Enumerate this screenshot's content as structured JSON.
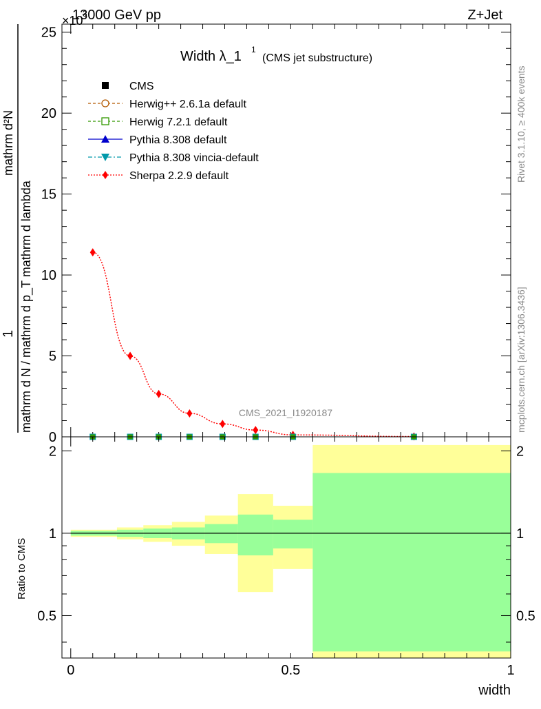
{
  "header": {
    "left": "13000 GeV pp",
    "right": "Z+Jet",
    "exponent": "×10",
    "exponent_power": "3"
  },
  "title": {
    "main": "Width λ_1",
    "sup": "1",
    "sub": "(CMS jet substructure)"
  },
  "side_labels": {
    "rivet": "Rivet 3.1.10, ≥ 400k events",
    "mcplots": "mcplots.cern.ch [arXiv:1306.3436]"
  },
  "watermark": "CMS_2021_I1920187",
  "legend": [
    {
      "label": "CMS",
      "marker": "square-filled",
      "color": "#000000",
      "line": "none"
    },
    {
      "label": "Herwig++ 2.6.1a default",
      "marker": "circle-open",
      "color": "#b35900",
      "line": "dashed"
    },
    {
      "label": "Herwig 7.2.1 default",
      "marker": "square-open",
      "color": "#339900",
      "line": "dashed"
    },
    {
      "label": "Pythia 8.308 default",
      "marker": "triangle-up",
      "color": "#0000cc",
      "line": "solid"
    },
    {
      "label": "Pythia 8.308 vincia-default",
      "marker": "triangle-down",
      "color": "#0099aa",
      "line": "dashdot"
    },
    {
      "label": "Sherpa 2.2.9 default",
      "marker": "diamond",
      "color": "#ff0000",
      "line": "dotted"
    }
  ],
  "chart_data": [
    {
      "type": "line",
      "ylabel_top": "1",
      "ylabel_main": "mathrm d N / mathrm d p_T mathrm d lambda",
      "ylabel_numerator": "mathrm d²N",
      "ylabel_denominator": "mathrm d p_T mathrm d p_T mathrm d lambda",
      "ylim": [
        0,
        25.5
      ],
      "y_scale_factor": "×10^3",
      "yticks": [
        0,
        5,
        10,
        15,
        20,
        25
      ],
      "xlim": [
        -0.02,
        1.0
      ],
      "series": [
        {
          "name": "Sherpa 2.2.9 default",
          "x": [
            0.05,
            0.135,
            0.2,
            0.27,
            0.345,
            0.42,
            0.505,
            0.78
          ],
          "y": [
            11.4,
            5.0,
            2.65,
            1.45,
            0.8,
            0.42,
            0.12,
            0.02
          ]
        },
        {
          "name": "CMS",
          "x": [
            0.05,
            0.135,
            0.2,
            0.27,
            0.345,
            0.42,
            0.505,
            0.78
          ],
          "y": [
            0,
            0,
            0,
            0,
            0,
            0,
            0,
            0
          ]
        }
      ]
    },
    {
      "type": "area",
      "ylabel": "Ratio to CMS",
      "xlabel": "width",
      "ylim": [
        0.35,
        2.25
      ],
      "yticks": [
        0.5,
        1,
        2
      ],
      "xticks": [
        0,
        0.5,
        1
      ],
      "xlim": [
        -0.02,
        1.0
      ],
      "bins": [
        {
          "lo": 0.0,
          "hi": 0.105,
          "yellow": [
            0.97,
            1.03
          ],
          "green": [
            0.98,
            1.02
          ]
        },
        {
          "lo": 0.105,
          "hi": 0.165,
          "yellow": [
            0.95,
            1.05
          ],
          "green": [
            0.97,
            1.03
          ]
        },
        {
          "lo": 0.165,
          "hi": 0.23,
          "yellow": [
            0.93,
            1.07
          ],
          "green": [
            0.96,
            1.04
          ]
        },
        {
          "lo": 0.23,
          "hi": 0.305,
          "yellow": [
            0.9,
            1.1
          ],
          "green": [
            0.95,
            1.05
          ]
        },
        {
          "lo": 0.305,
          "hi": 0.38,
          "yellow": [
            0.84,
            1.16
          ],
          "green": [
            0.92,
            1.08
          ]
        },
        {
          "lo": 0.38,
          "hi": 0.46,
          "yellow": [
            0.61,
            1.39
          ],
          "green": [
            0.83,
            1.17
          ]
        },
        {
          "lo": 0.46,
          "hi": 0.55,
          "yellow": [
            0.74,
            1.26
          ],
          "green": [
            0.88,
            1.12
          ]
        },
        {
          "lo": 0.55,
          "hi": 1.0,
          "yellow": [
            0.35,
            2.1
          ],
          "green": [
            0.37,
            1.66
          ]
        }
      ]
    }
  ]
}
